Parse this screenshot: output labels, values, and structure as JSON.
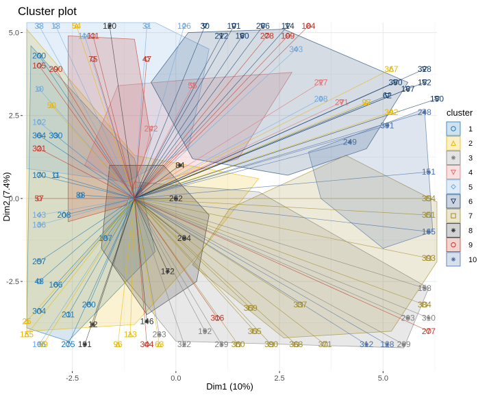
{
  "chart_data": {
    "type": "scatter",
    "title": "Cluster plot",
    "xlabel": "Dim1 (10%)",
    "ylabel": "Dim2 (7.4%)",
    "xlim": [
      -3.7,
      6.3
    ],
    "ylim": [
      -5.2,
      5.3
    ],
    "xticks": [
      -2.5,
      0.0,
      2.5,
      5.0
    ],
    "yticks": [
      -2.5,
      0.0,
      2.5,
      5.0
    ],
    "xtick_labels": [
      "-2.5",
      "0.0",
      "2.5",
      "5.0"
    ],
    "ytick_labels": [
      "-2.5",
      "0.0",
      "2.5",
      "5.0"
    ],
    "grid": true,
    "legend_position": "right",
    "legend_title": "cluster",
    "centroid": [
      -1.0,
      0.0
    ],
    "colors": {
      "1": "#1f77b4",
      "2": "#e6b800",
      "3": "#7f7f7f",
      "4": "#e07070",
      "5": "#6fa8dc",
      "6": "#163e6b",
      "7": "#a08c2c",
      "8": "#333333",
      "9": "#c0392b",
      "10": "#4a6fa5"
    },
    "clusters": [
      {
        "id": "1",
        "label": "1",
        "shape": "circle",
        "color": "#1f77b4",
        "fill": "#1f77b4",
        "hull": [
          [
            -3.5,
            4.6
          ],
          [
            -1.0,
            1.2
          ],
          [
            -0.5,
            -1.6
          ],
          [
            -2.6,
            -4.3
          ],
          [
            -3.6,
            -3.9
          ]
        ],
        "points": [
          {
            "label": "200",
            "x": -3.3,
            "y": 4.3
          },
          {
            "label": "364",
            "x": -3.3,
            "y": 1.9
          },
          {
            "label": "330",
            "x": -2.9,
            "y": 1.9
          },
          {
            "label": "170",
            "x": -3.3,
            "y": 0.7
          },
          {
            "label": "11",
            "x": -2.9,
            "y": 0.7
          },
          {
            "label": "257",
            "x": -3.3,
            "y": -1.9
          },
          {
            "label": "48",
            "x": -3.3,
            "y": -2.5
          },
          {
            "label": "166",
            "x": -2.9,
            "y": -2.6
          },
          {
            "label": "304",
            "x": -3.3,
            "y": -3.4
          },
          {
            "label": "211",
            "x": -2.6,
            "y": -3.5
          },
          {
            "label": "275",
            "x": -2.6,
            "y": -4.4
          },
          {
            "label": "260",
            "x": -2.1,
            "y": -3.2
          },
          {
            "label": "88",
            "x": -2.3,
            "y": 0.1
          },
          {
            "label": "208",
            "x": -2.7,
            "y": -0.5
          },
          {
            "label": "187",
            "x": -1.7,
            "y": -1.2
          }
        ]
      },
      {
        "id": "2",
        "label": "2",
        "shape": "triangle",
        "color": "#e6b800",
        "fill": "#e6b800",
        "hull": [
          [
            -3.6,
            5.1
          ],
          [
            -1.0,
            1.3
          ],
          [
            2.0,
            0.6
          ],
          [
            0.6,
            -1.6
          ],
          [
            -1.0,
            -3.8
          ],
          [
            -3.6,
            -4.0
          ]
        ],
        "points": [
          {
            "label": "54",
            "x": -2.4,
            "y": 5.2
          },
          {
            "label": "50",
            "x": -3.0,
            "y": 2.8
          },
          {
            "label": "25",
            "x": -3.6,
            "y": -3.7
          },
          {
            "label": "155",
            "x": -3.6,
            "y": -4.1
          },
          {
            "label": "59",
            "x": -3.2,
            "y": -4.4
          },
          {
            "label": "96",
            "x": -1.4,
            "y": -4.4
          },
          {
            "label": "113",
            "x": -1.1,
            "y": -4.1
          },
          {
            "label": "63",
            "x": -0.4,
            "y": -4.4
          },
          {
            "label": "367",
            "x": 5.2,
            "y": 3.9
          },
          {
            "label": "392",
            "x": 5.2,
            "y": 2.6
          },
          {
            "label": "97",
            "x": 4.6,
            "y": 2.9
          }
        ]
      },
      {
        "id": "3",
        "label": "3",
        "shape": "cross",
        "color": "#7f7f7f",
        "fill": "#7f7f7f",
        "hull": [
          [
            -1.0,
            0.5
          ],
          [
            2.0,
            0.2
          ],
          [
            6.1,
            -2.7
          ],
          [
            5.5,
            -4.5
          ],
          [
            0.0,
            -4.3
          ],
          [
            -1.5,
            -2.0
          ]
        ],
        "points": [
          {
            "label": "322",
            "x": 0.2,
            "y": -4.4
          },
          {
            "label": "239",
            "x": 1.1,
            "y": -4.4
          },
          {
            "label": "283",
            "x": -0.4,
            "y": -4.1
          },
          {
            "label": "192",
            "x": 0.7,
            "y": -4.0
          },
          {
            "label": "158",
            "x": 6.0,
            "y": -2.7
          },
          {
            "label": "209",
            "x": 5.5,
            "y": -4.4
          },
          {
            "label": "310",
            "x": 6.1,
            "y": -3.6
          },
          {
            "label": "203",
            "x": 5.6,
            "y": -3.6
          }
        ]
      },
      {
        "id": "4",
        "label": "4",
        "shape": "triangle-down",
        "color": "#e07070",
        "fill": "#e07070",
        "hull": [
          [
            -1.4,
            3.4
          ],
          [
            0.5,
            3.6
          ],
          [
            2.8,
            3.8
          ],
          [
            1.5,
            1.2
          ],
          [
            -1.0,
            0.3
          ],
          [
            -2.2,
            1.0
          ]
        ],
        "points": [
          {
            "label": "55",
            "x": 0.4,
            "y": 3.4
          },
          {
            "label": "242",
            "x": -0.6,
            "y": 2.1
          },
          {
            "label": "217",
            "x": 3.5,
            "y": 3.5
          },
          {
            "label": "271",
            "x": 4.0,
            "y": 2.9
          }
        ]
      },
      {
        "id": "5",
        "label": "5",
        "shape": "diamond",
        "color": "#6fa8dc",
        "fill": "#6fa8dc",
        "hull": [
          [
            -3.6,
            5.3
          ],
          [
            -0.5,
            5.3
          ],
          [
            0.8,
            4.5
          ],
          [
            0.3,
            1.5
          ],
          [
            -1.2,
            0.5
          ],
          [
            -3.6,
            0.9
          ]
        ],
        "points": [
          {
            "label": "33",
            "x": -3.3,
            "y": 5.2
          },
          {
            "label": "13",
            "x": -2.9,
            "y": 5.2
          },
          {
            "label": "31",
            "x": -0.7,
            "y": 5.2
          },
          {
            "label": "126",
            "x": 0.2,
            "y": 5.2
          },
          {
            "label": "116",
            "x": -2.2,
            "y": 4.9
          },
          {
            "label": "10",
            "x": -3.3,
            "y": 3.3
          },
          {
            "label": "102",
            "x": -3.3,
            "y": 2.3
          },
          {
            "label": "143",
            "x": -3.3,
            "y": -0.5
          },
          {
            "label": "136",
            "x": -3.3,
            "y": -0.8
          },
          {
            "label": "196",
            "x": -3.3,
            "y": -4.4
          },
          {
            "label": "343",
            "x": 2.9,
            "y": 4.5
          },
          {
            "label": "298",
            "x": 3.5,
            "y": 3.0
          }
        ]
      },
      {
        "id": "6",
        "label": "6",
        "shape": "triangle-down",
        "color": "#163e6b",
        "fill": "#163e6b",
        "hull": [
          [
            0.3,
            5.0
          ],
          [
            2.6,
            5.1
          ],
          [
            5.6,
            3.5
          ],
          [
            4.6,
            1.5
          ],
          [
            2.7,
            0.7
          ],
          [
            0.4,
            1.2
          ],
          [
            -0.6,
            3.5
          ]
        ],
        "points": [
          {
            "label": "30",
            "x": 0.7,
            "y": 5.2
          },
          {
            "label": "101",
            "x": 1.4,
            "y": 5.2
          },
          {
            "label": "266",
            "x": 2.1,
            "y": 5.2
          },
          {
            "label": "114",
            "x": 2.7,
            "y": 5.2
          },
          {
            "label": "212",
            "x": 1.1,
            "y": 4.9
          },
          {
            "label": "160",
            "x": 1.6,
            "y": 4.9
          },
          {
            "label": "152",
            "x": 6.0,
            "y": 3.5
          },
          {
            "label": "150",
            "x": 6.3,
            "y": 3.0
          },
          {
            "label": "62",
            "x": 5.1,
            "y": 3.1
          },
          {
            "label": "167",
            "x": 5.6,
            "y": 3.3
          },
          {
            "label": "350",
            "x": 5.3,
            "y": 3.5
          },
          {
            "label": "328",
            "x": 6.0,
            "y": 3.9
          }
        ]
      },
      {
        "id": "7",
        "label": "7",
        "shape": "square",
        "color": "#a08c2c",
        "fill": "#a08c2c",
        "hull": [
          [
            1.3,
            -0.3
          ],
          [
            4.1,
            1.3
          ],
          [
            6.3,
            -0.1
          ],
          [
            6.3,
            -1.9
          ],
          [
            5.2,
            -4.0
          ],
          [
            2.6,
            -4.2
          ],
          [
            0.4,
            -2.0
          ]
        ],
        "points": [
          {
            "label": "354",
            "x": 6.1,
            "y": 0.0
          },
          {
            "label": "351",
            "x": 6.1,
            "y": -0.5
          },
          {
            "label": "393",
            "x": 6.1,
            "y": -1.8
          },
          {
            "label": "384",
            "x": 6.0,
            "y": -3.2
          },
          {
            "label": "360",
            "x": 1.5,
            "y": -4.4
          },
          {
            "label": "390",
            "x": 2.3,
            "y": -4.4
          },
          {
            "label": "368",
            "x": 2.9,
            "y": -4.4
          },
          {
            "label": "371",
            "x": 3.6,
            "y": -4.4
          },
          {
            "label": "365",
            "x": 1.9,
            "y": -4.0
          },
          {
            "label": "369",
            "x": 1.8,
            "y": -3.3
          },
          {
            "label": "337",
            "x": 3.0,
            "y": -3.2
          }
        ]
      },
      {
        "id": "8",
        "label": "8",
        "shape": "asterisk",
        "color": "#333333",
        "fill": "#333333",
        "hull": [
          [
            -1.6,
            1.0
          ],
          [
            -0.3,
            1.0
          ],
          [
            0.8,
            -0.5
          ],
          [
            0.5,
            -2.5
          ],
          [
            -0.7,
            -3.5
          ],
          [
            -1.8,
            -1.5
          ]
        ],
        "points": [
          {
            "label": "120",
            "x": -1.6,
            "y": 5.2
          },
          {
            "label": "191",
            "x": -2.2,
            "y": -4.4
          },
          {
            "label": "12",
            "x": -2.0,
            "y": -3.8
          },
          {
            "label": "146",
            "x": -0.7,
            "y": -3.7
          },
          {
            "label": "172",
            "x": -0.2,
            "y": -2.2
          },
          {
            "label": "204",
            "x": 0.2,
            "y": -1.2
          },
          {
            "label": "84",
            "x": 0.1,
            "y": 1.0
          },
          {
            "label": "262",
            "x": 0.0,
            "y": 0.0
          }
        ]
      },
      {
        "id": "9",
        "label": "9",
        "shape": "circle-plus",
        "color": "#c0392b",
        "fill": "#c0392b",
        "hull": [
          [
            -2.6,
            4.9
          ],
          [
            -1.0,
            4.8
          ],
          [
            -0.6,
            1.8
          ],
          [
            -1.2,
            -0.2
          ],
          [
            -2.6,
            -0.7
          ]
        ],
        "points": [
          {
            "label": "111",
            "x": -2.0,
            "y": 4.9
          },
          {
            "label": "184",
            "x": 3.2,
            "y": 5.2
          },
          {
            "label": "278",
            "x": 2.2,
            "y": 4.9
          },
          {
            "label": "199",
            "x": 2.7,
            "y": 4.9
          },
          {
            "label": "105",
            "x": -3.3,
            "y": 4.0
          },
          {
            "label": "290",
            "x": -2.9,
            "y": 3.9
          },
          {
            "label": "75",
            "x": -2.0,
            "y": 4.2
          },
          {
            "label": "47",
            "x": -0.7,
            "y": 4.2
          },
          {
            "label": "321",
            "x": -3.3,
            "y": 1.5
          },
          {
            "label": "57",
            "x": -3.3,
            "y": 0.0
          },
          {
            "label": "344",
            "x": -0.7,
            "y": -4.4
          },
          {
            "label": "277",
            "x": 6.1,
            "y": -4.0
          },
          {
            "label": "316",
            "x": 1.0,
            "y": -3.6
          }
        ]
      },
      {
        "id": "10",
        "label": "10",
        "shape": "star",
        "color": "#4a6fa5",
        "fill": "#4a6fa5",
        "hull": [
          [
            3.2,
            1.4
          ],
          [
            6.0,
            2.7
          ],
          [
            6.2,
            -1.0
          ],
          [
            5.0,
            -1.5
          ],
          [
            3.5,
            0.0
          ]
        ],
        "points": [
          {
            "label": "248",
            "x": 6.0,
            "y": 2.6
          },
          {
            "label": "151",
            "x": 6.1,
            "y": 0.8
          },
          {
            "label": "165",
            "x": 6.1,
            "y": -1.0
          },
          {
            "label": "128",
            "x": 5.1,
            "y": -4.4
          },
          {
            "label": "312",
            "x": 4.6,
            "y": -4.4
          },
          {
            "label": "391",
            "x": 5.1,
            "y": 2.2
          },
          {
            "label": "249",
            "x": 4.2,
            "y": 1.7
          }
        ]
      }
    ]
  }
}
